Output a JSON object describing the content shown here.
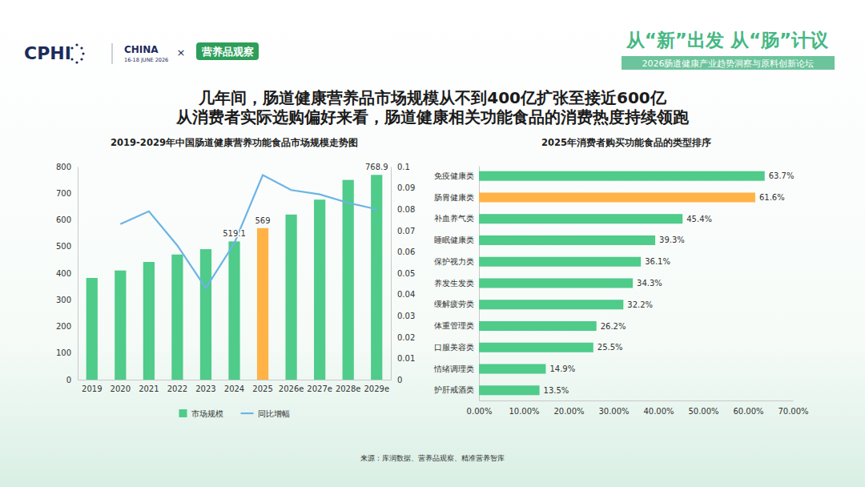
{
  "header": {
    "logo": "CPHI",
    "event": "CHINA",
    "dates": "16-18 JUNE 2026",
    "separator": "×",
    "partner": "营养品观察",
    "slogan": "从“新”出发 从“肠”计议",
    "forum": "2026肠道健康产业趋势洞察与原料创新论坛"
  },
  "title": [
    "几年间，肠道健康营养品市场规模从不到400亿扩张至接近600亿",
    "从消费者实际选购偏好来看，肠道健康相关功能食品的消费热度持续领跑"
  ],
  "source": "来源：库润数据、营养品观察、精准营养智库",
  "chart_data": [
    {
      "type": "bar",
      "title": "2019-2029年中国肠道健康营养功能食品市场规模走势图",
      "categories": [
        "2019",
        "2020",
        "2021",
        "2022",
        "2023",
        "2024",
        "2025",
        "2026e",
        "2027e",
        "2028e",
        "2029e"
      ],
      "series": [
        {
          "name": "市场规模",
          "type": "bar",
          "colors": [
            "#4fcb8a",
            "#4fcb8a",
            "#4fcb8a",
            "#4fcb8a",
            "#4fcb8a",
            "#4fcb8a",
            "#ffb347",
            "#4fcb8a",
            "#4fcb8a",
            "#4fcb8a",
            "#4fcb8a"
          ],
          "values": [
            382,
            410,
            442,
            470,
            490,
            519.1,
            569,
            620,
            676,
            750,
            768.9
          ],
          "value_labels": [
            null,
            null,
            null,
            null,
            null,
            "519.1",
            "569",
            null,
            null,
            null,
            "768.9"
          ]
        },
        {
          "name": "同比增幅",
          "type": "line",
          "axis": "y2",
          "color": "#6cb4e4",
          "values": [
            null,
            0.073,
            0.079,
            0.063,
            0.043,
            0.064,
            0.096,
            0.089,
            0.087,
            0.083,
            0.08
          ]
        }
      ],
      "ylim": [
        0,
        800
      ],
      "yticks": [
        0,
        100,
        200,
        300,
        400,
        500,
        600,
        700,
        800
      ],
      "y2lim": [
        0,
        0.1
      ],
      "y2ticks": [
        0,
        0.01,
        0.02,
        0.03,
        0.04,
        0.05,
        0.06,
        0.07,
        0.08,
        0.09,
        0.1
      ],
      "legend": "bottom",
      "data_labels": true,
      "grid": false
    },
    {
      "type": "bar",
      "orientation": "horizontal",
      "title": "2025年消费者购买功能食品的类型排序",
      "categories": [
        "免疫健康类",
        "肠胃健康类",
        "补血养气类",
        "睡眠健康类",
        "保护视力类",
        "养发生发类",
        "缓解疲劳类",
        "体重管理类",
        "口服美容类",
        "情绪调理类",
        "护肝戒酒类"
      ],
      "values": [
        63.7,
        61.6,
        45.4,
        39.3,
        36.1,
        34.3,
        32.2,
        26.2,
        25.5,
        14.9,
        13.5
      ],
      "value_labels": [
        "63.7%",
        "61.6%",
        "45.4%",
        "39.3%",
        "36.1%",
        "34.3%",
        "32.2%",
        "26.2%",
        "25.5%",
        "14.9%",
        "13.5%"
      ],
      "colors": [
        "#4fcb8a",
        "#ffb347",
        "#4fcb8a",
        "#4fcb8a",
        "#4fcb8a",
        "#4fcb8a",
        "#4fcb8a",
        "#4fcb8a",
        "#4fcb8a",
        "#4fcb8a",
        "#4fcb8a"
      ],
      "xlim": [
        0,
        70
      ],
      "xticks": [
        {
          "value": 0,
          "label": "0.00%"
        },
        {
          "value": 10,
          "label": "10.00%"
        },
        {
          "value": 20,
          "label": "20.00%"
        },
        {
          "value": 30,
          "label": "30.00%"
        },
        {
          "value": 40,
          "label": "40.00%"
        },
        {
          "value": 50,
          "label": "50.00%"
        },
        {
          "value": 60,
          "label": "60.00%"
        },
        {
          "value": 70,
          "label": "70.00%"
        }
      ],
      "data_labels": true,
      "grid": false
    }
  ]
}
